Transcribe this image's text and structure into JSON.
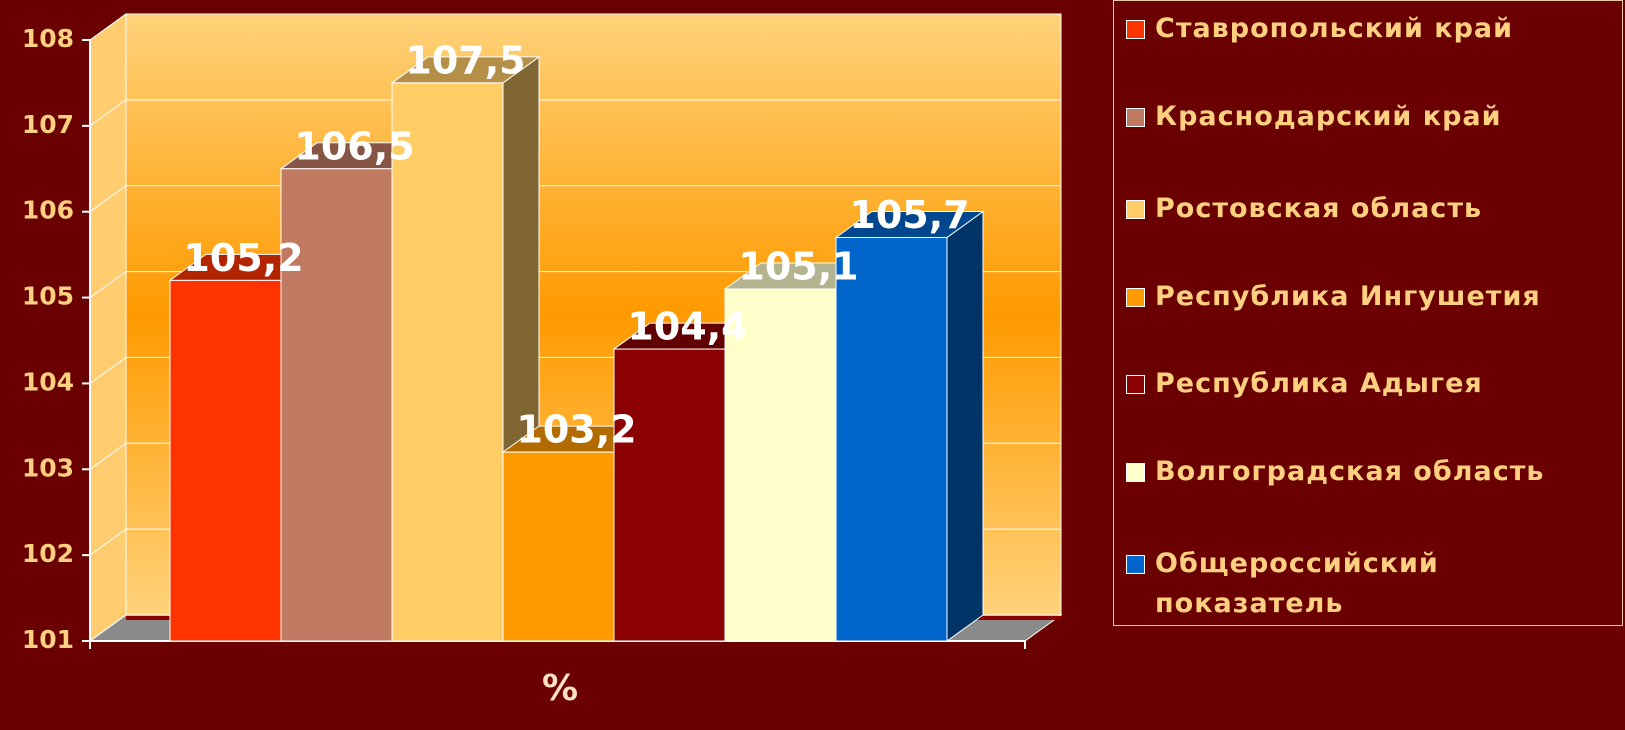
{
  "chart_data": {
    "type": "bar3d",
    "categories": [
      "%"
    ],
    "series": [
      {
        "name": "Ставропольский край",
        "color": "#ff3300",
        "values": [
          105.2
        ],
        "value_labels": [
          "105,2"
        ]
      },
      {
        "name": "Краснодарский край",
        "color": "#c07a62",
        "values": [
          106.5
        ],
        "value_labels": [
          "106,5"
        ]
      },
      {
        "name": "Ростовская область",
        "color": "#ffcc66",
        "values": [
          107.5
        ],
        "value_labels": [
          "107,5"
        ]
      },
      {
        "name": "Республика Ингушетия",
        "color": "#ff9900",
        "values": [
          103.2
        ],
        "value_labels": [
          "103,2"
        ]
      },
      {
        "name": "Республика Адыгея",
        "color": "#8b0000",
        "values": [
          104.4
        ],
        "value_labels": [
          "104,4"
        ]
      },
      {
        "name": "Волгоградская область",
        "color": "#ffffcc",
        "values": [
          105.1
        ],
        "value_labels": [
          "105,1"
        ]
      },
      {
        "name": "Общероссийский показатель",
        "color": "#0066cc",
        "values": [
          105.7
        ],
        "value_labels": [
          "105,7"
        ]
      }
    ],
    "ylim": [
      101,
      108
    ],
    "yticks": [
      101,
      102,
      103,
      104,
      105,
      106,
      107,
      108
    ],
    "grid": true,
    "legend": "right"
  }
}
